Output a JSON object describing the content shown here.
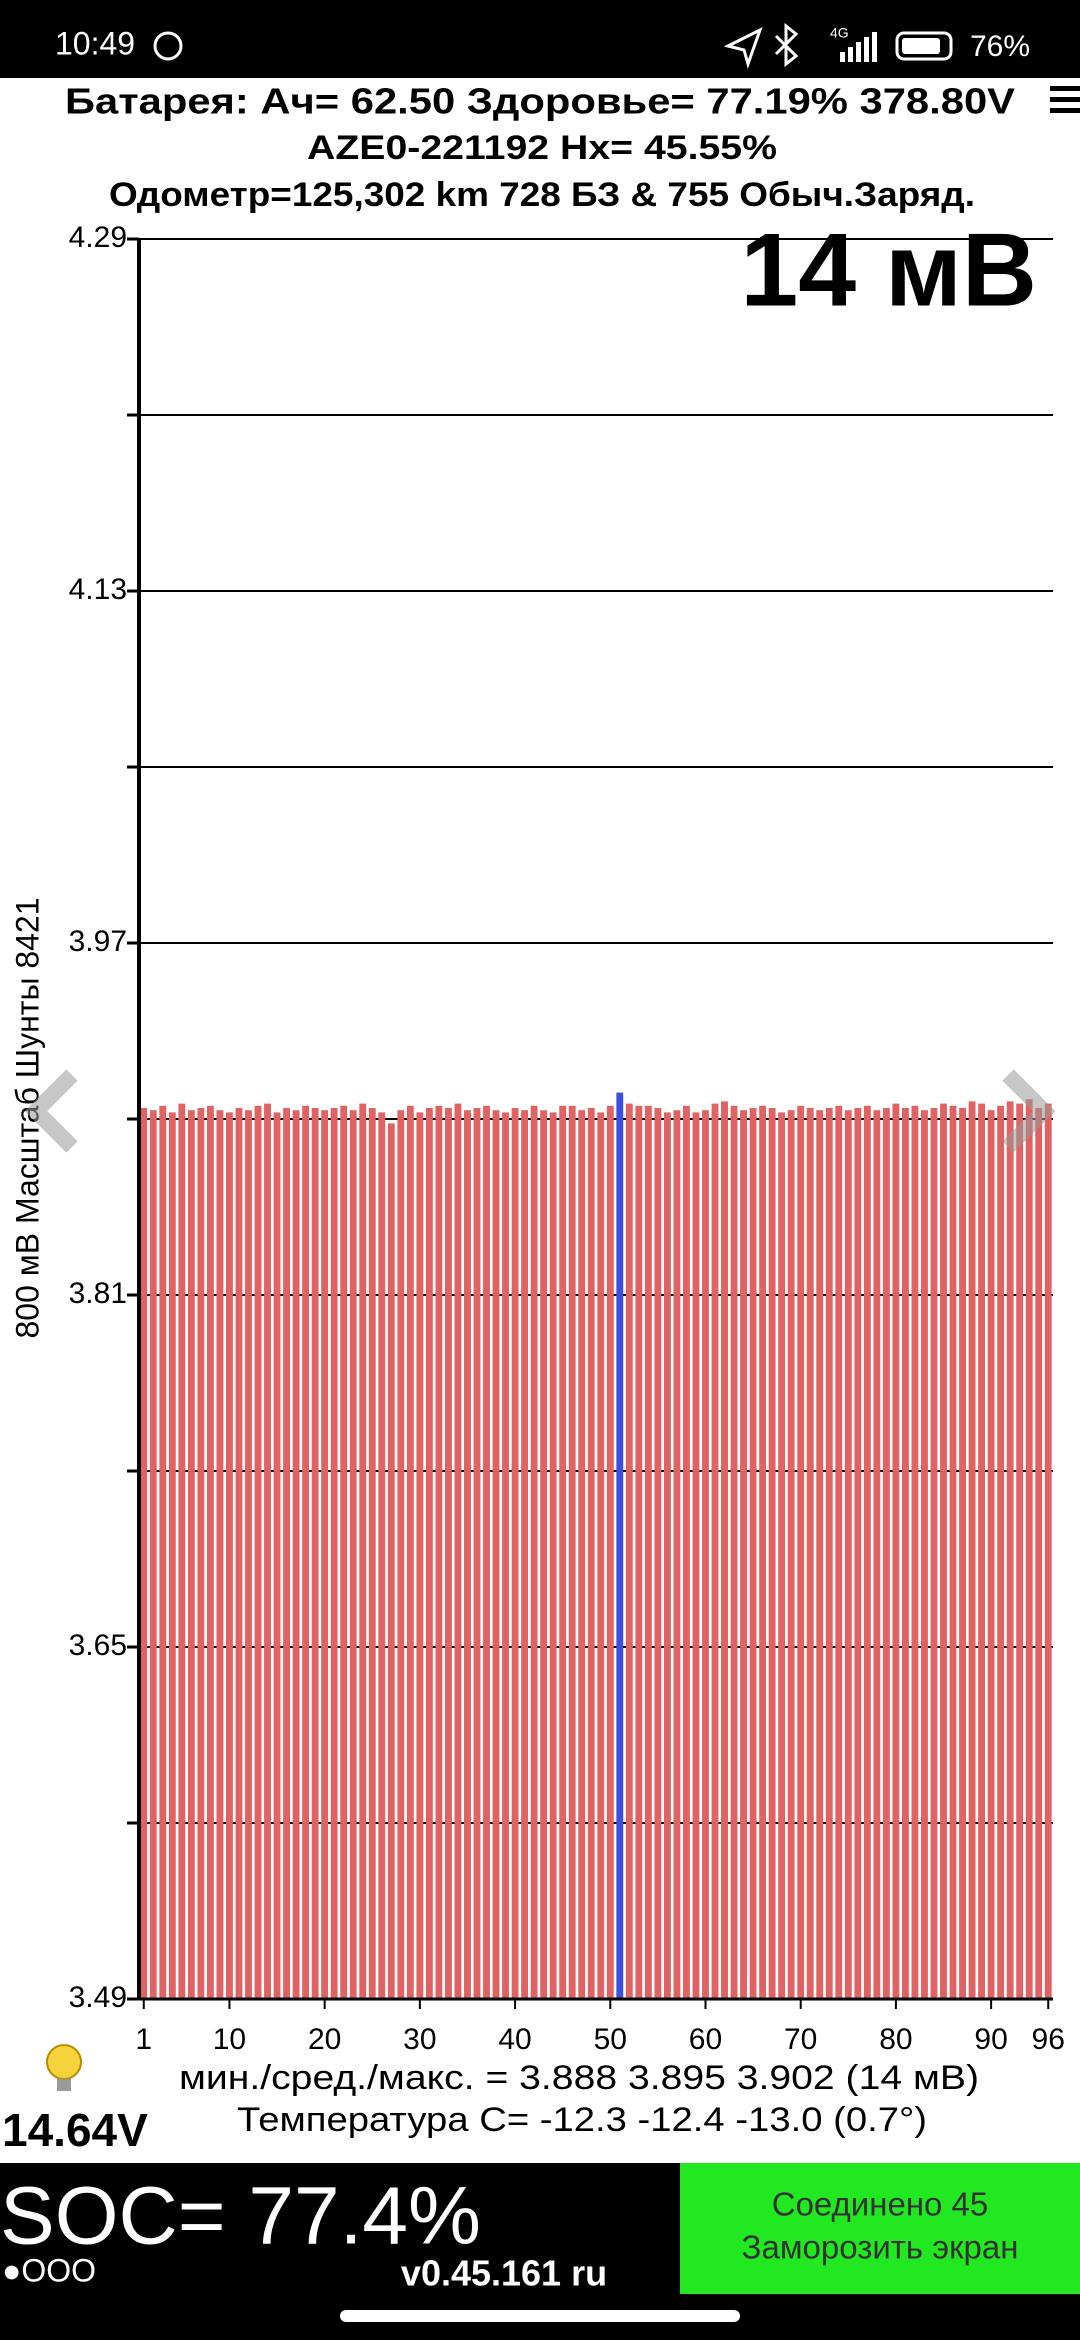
{
  "status_bar": {
    "time": "10:49",
    "network": "4G",
    "battery": "76%"
  },
  "header": {
    "line1": "Батарея:  Ач= 62.50  Здоровье= 77.19%   378.80V",
    "line2": "AZE0-221192   Hx= 45.55%",
    "line3": "Одометр=125,302 km 728 БЗ & 755 Обыч.Заряд.",
    "spread": "14 мВ"
  },
  "chart_data": {
    "type": "bar",
    "y_label": "800 мВ Масштаб  Шунты 8421",
    "x": [
      1,
      2,
      3,
      4,
      5,
      6,
      7,
      8,
      9,
      10,
      11,
      12,
      13,
      14,
      15,
      16,
      17,
      18,
      19,
      20,
      21,
      22,
      23,
      24,
      25,
      26,
      27,
      28,
      29,
      30,
      31,
      32,
      33,
      34,
      35,
      36,
      37,
      38,
      39,
      40,
      41,
      42,
      43,
      44,
      45,
      46,
      47,
      48,
      49,
      50,
      51,
      52,
      53,
      54,
      55,
      56,
      57,
      58,
      59,
      60,
      61,
      62,
      63,
      64,
      65,
      66,
      67,
      68,
      69,
      70,
      71,
      72,
      73,
      74,
      75,
      76,
      77,
      78,
      79,
      80,
      81,
      82,
      83,
      84,
      85,
      86,
      87,
      88,
      89,
      90,
      91,
      92,
      93,
      94,
      95,
      96
    ],
    "values": [
      3.895,
      3.894,
      3.896,
      3.893,
      3.897,
      3.894,
      3.895,
      3.896,
      3.894,
      3.893,
      3.895,
      3.894,
      3.896,
      3.897,
      3.893,
      3.895,
      3.894,
      3.896,
      3.895,
      3.894,
      3.895,
      3.896,
      3.894,
      3.897,
      3.895,
      3.893,
      3.888,
      3.894,
      3.896,
      3.893,
      3.895,
      3.896,
      3.895,
      3.897,
      3.894,
      3.895,
      3.896,
      3.894,
      3.893,
      3.895,
      3.894,
      3.896,
      3.894,
      3.893,
      3.896,
      3.896,
      3.894,
      3.895,
      3.893,
      3.896,
      3.902,
      3.897,
      3.896,
      3.896,
      3.895,
      3.893,
      3.894,
      3.896,
      3.893,
      3.894,
      3.897,
      3.898,
      3.896,
      3.894,
      3.895,
      3.896,
      3.895,
      3.893,
      3.894,
      3.896,
      3.895,
      3.894,
      3.895,
      3.896,
      3.894,
      3.895,
      3.896,
      3.894,
      3.895,
      3.897,
      3.895,
      3.896,
      3.894,
      3.895,
      3.897,
      3.896,
      3.895,
      3.898,
      3.897,
      3.894,
      3.896,
      3.898,
      3.897,
      3.899,
      3.895,
      3.897
    ],
    "color": "#e06262",
    "highlight": {
      "x": 51,
      "color": "#3d4fe0"
    },
    "ylim": [
      3.49,
      4.29
    ],
    "yticks": [
      3.49,
      3.65,
      3.81,
      3.97,
      4.13,
      4.29
    ],
    "minor_yticks": [
      3.57,
      3.73,
      3.89,
      4.05,
      4.21
    ],
    "xticks": [
      1,
      10,
      20,
      30,
      40,
      50,
      60,
      70,
      80,
      90,
      96
    ],
    "grid": true
  },
  "footer": {
    "stats": "мин./сред./макс. = 3.888 3.895 3.902  (14 мВ)",
    "temperature": "Температура C= -12.3  -12.4  -13.0  (0.7°)",
    "voltage_12v": "14.64V"
  },
  "bottom_bar": {
    "soc": "SOC= 77.4%",
    "indicator": "●OOO",
    "version": "v0.45.161 ru",
    "button": {
      "line1": "Соединено 45",
      "line2": "Заморозить экран"
    }
  }
}
